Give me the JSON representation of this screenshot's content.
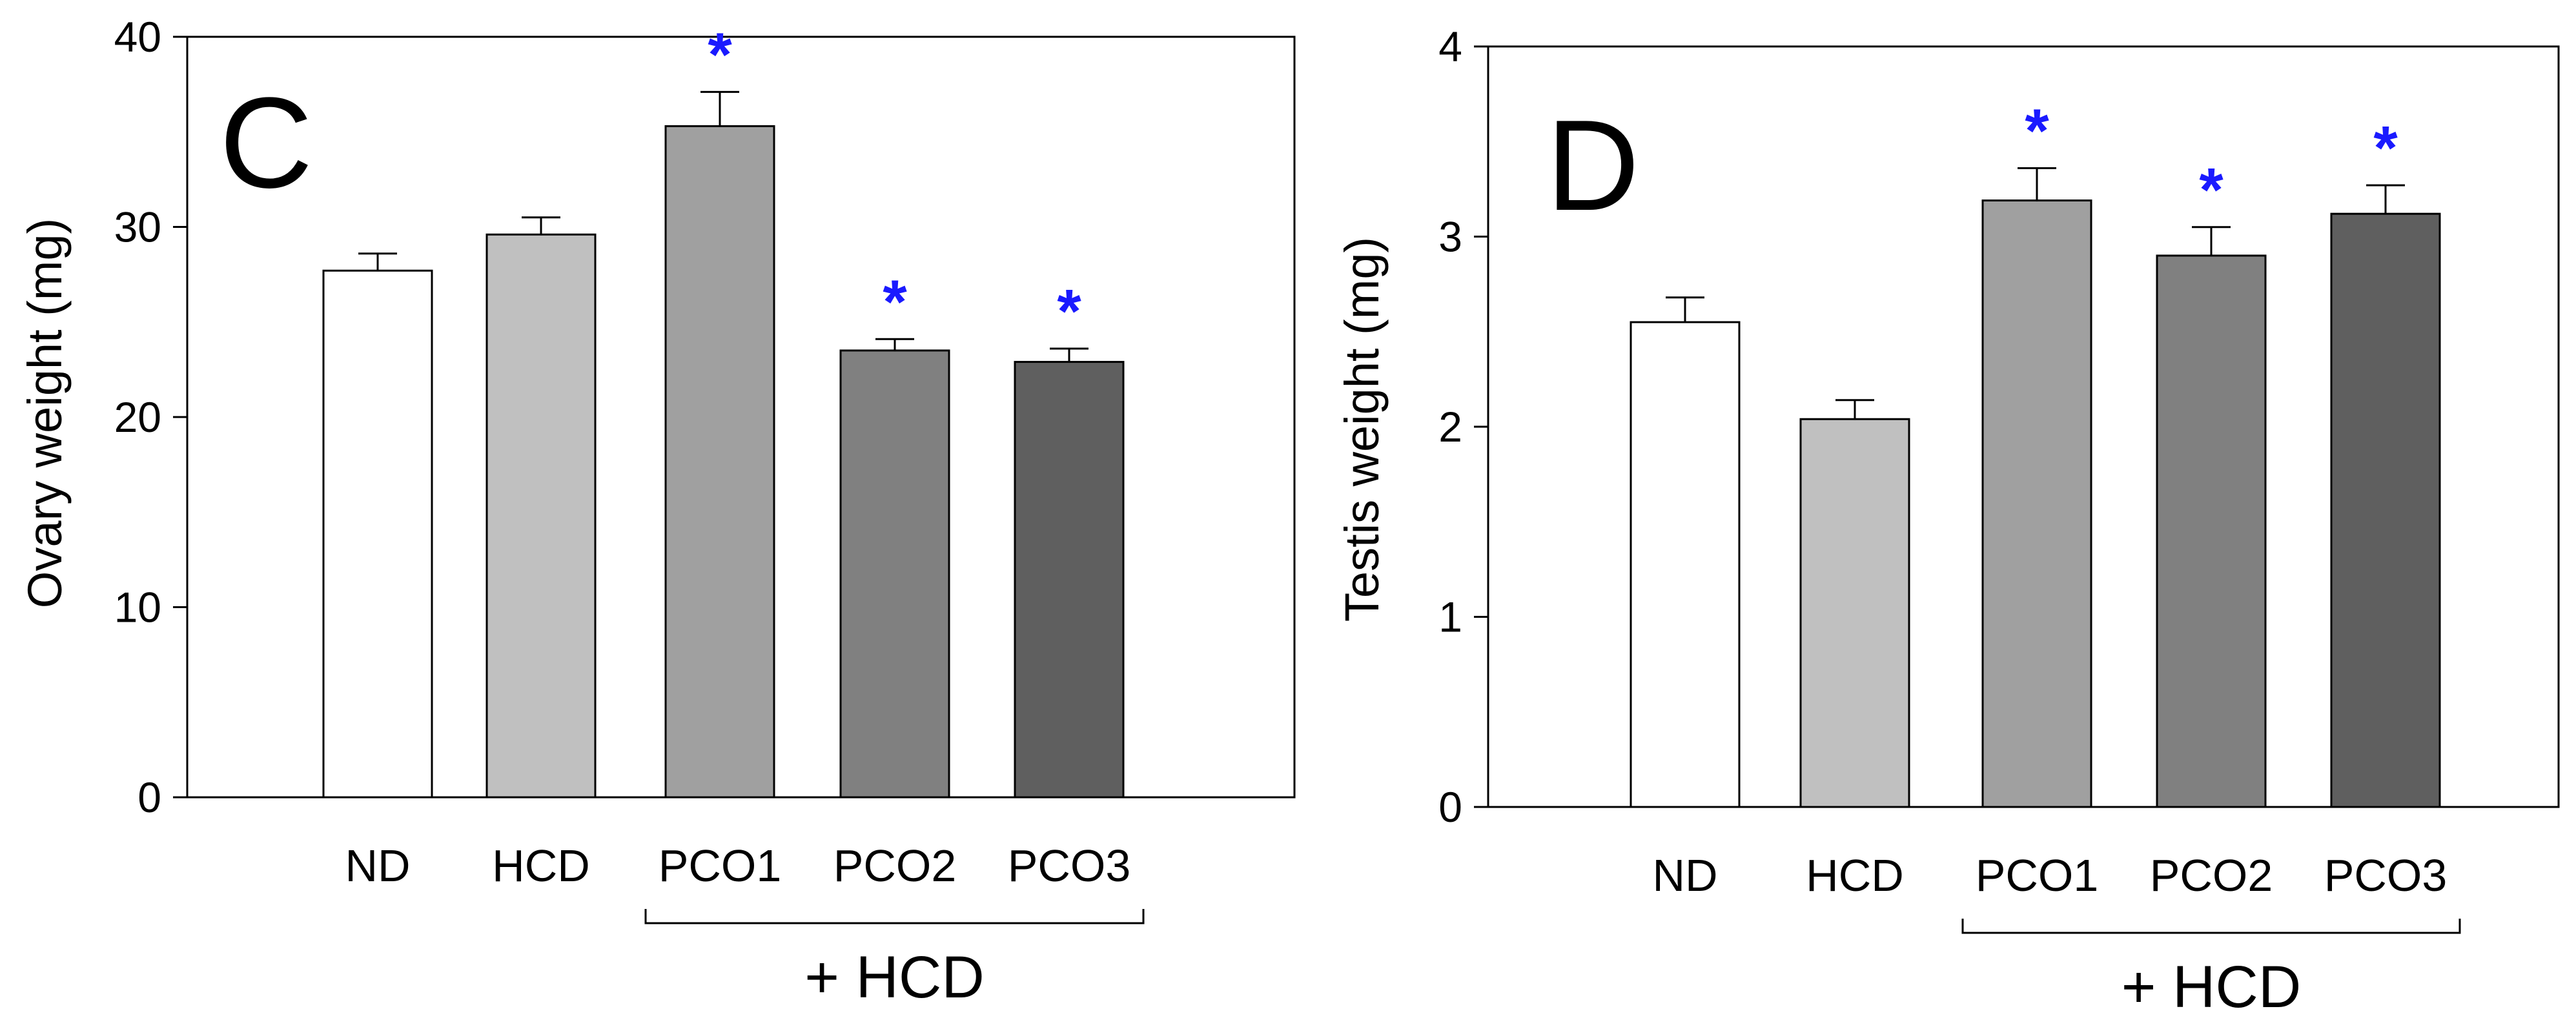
{
  "chart_data": [
    {
      "type": "bar",
      "panel_label": "C",
      "title": "",
      "xlabel": "",
      "ylabel": "Ovary weight (mg)",
      "ylim": [
        0,
        40
      ],
      "yticks": [
        "0",
        "10",
        "20",
        "30",
        "40"
      ],
      "categories": [
        "ND",
        "HCD",
        "PCO1",
        "PCO2",
        "PCO3"
      ],
      "values": [
        27.7,
        29.6,
        35.3,
        23.5,
        22.9
      ],
      "errors": [
        0.9,
        0.9,
        1.8,
        0.6,
        0.7
      ],
      "significance": [
        "",
        "",
        "*",
        "*",
        "*"
      ],
      "bar_colors": [
        "#ffffff",
        "#c0c0c0",
        "#a0a0a0",
        "#808080",
        "#5f5f5f"
      ],
      "group_bracket": {
        "label": "+ HCD",
        "from": "PCO1",
        "to": "PCO3"
      },
      "star_color": "#1a1aff",
      "grid": false
    },
    {
      "type": "bar",
      "panel_label": "D",
      "title": "",
      "xlabel": "",
      "ylabel": "Testis weight (mg)",
      "ylim": [
        0,
        4
      ],
      "yticks": [
        "0",
        "1",
        "2",
        "3",
        "4"
      ],
      "categories": [
        "ND",
        "HCD",
        "PCO1",
        "PCO2",
        "PCO3"
      ],
      "values": [
        2.55,
        2.04,
        3.19,
        2.9,
        3.12
      ],
      "errors": [
        0.13,
        0.1,
        0.17,
        0.15,
        0.15
      ],
      "significance": [
        "",
        "",
        "*",
        "*",
        "*"
      ],
      "bar_colors": [
        "#ffffff",
        "#c0c0c0",
        "#a0a0a0",
        "#808080",
        "#5f5f5f"
      ],
      "group_bracket": {
        "label": "+ HCD",
        "from": "PCO1",
        "to": "PCO3"
      },
      "star_color": "#1a1aff",
      "grid": false
    }
  ]
}
